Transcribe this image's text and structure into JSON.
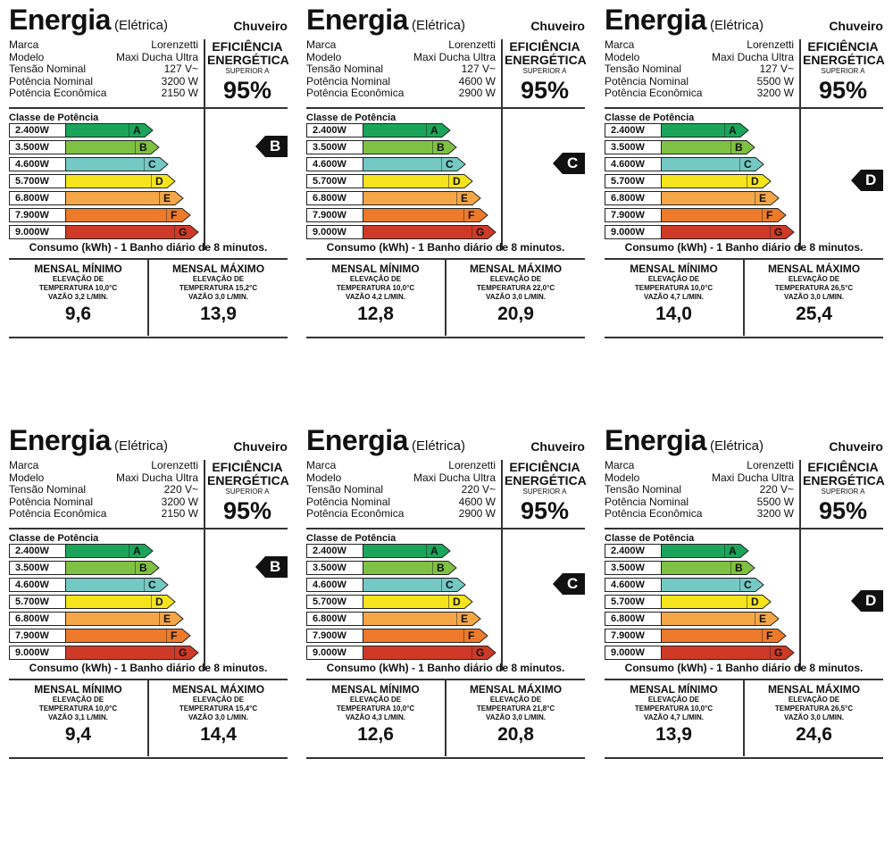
{
  "common": {
    "title": "Energia",
    "subtitle": "(Elétrica)",
    "type": "Chuveiro",
    "spec_labels": [
      "Marca",
      "Modelo",
      "Tensão Nominal",
      "Potência Nominal",
      "Potência Econômica"
    ],
    "efficiency": {
      "l1": "EFICIÊNCIA",
      "l2": "ENERGÉTICA",
      "l3": "SUPERIOR A",
      "l4": "95%"
    },
    "classe_title": "Classe de Potência",
    "classes": [
      {
        "power": "2.400W",
        "letter": "A",
        "color": "#1aa55a"
      },
      {
        "power": "3.500W",
        "letter": "B",
        "color": "#7fc142"
      },
      {
        "power": "4.600W",
        "letter": "C",
        "color": "#74c9c4"
      },
      {
        "power": "5.700W",
        "letter": "D",
        "color": "#f5e41c"
      },
      {
        "power": "6.800W",
        "letter": "E",
        "color": "#f5a748"
      },
      {
        "power": "7.900W",
        "letter": "F",
        "color": "#ed7a2a"
      },
      {
        "power": "9.000W",
        "letter": "G",
        "color": "#cf3a28"
      }
    ],
    "consumption_title": "Consumo (kWh) - 1 Banho diário de 8 minutos.",
    "min_title": "MENSAL MÍNIMO",
    "max_title": "MENSAL MÁXIMO",
    "elev_label": "ELEVAÇÃO DE"
  },
  "labels": [
    {
      "brand": "Lorenzetti",
      "model": "Maxi Ducha Ultra",
      "voltage": "127 V~",
      "power": "3200 W",
      "eco": "2150 W",
      "class": "B",
      "min": {
        "temp": "TEMPERATURA 10,0°C",
        "flow": "VAZÃO 3,2 L/MIN.",
        "value": "9,6"
      },
      "max": {
        "temp": "TEMPERATURA 15,2°C",
        "flow": "VAZÃO 3,0 L/MIN.",
        "value": "13,9"
      }
    },
    {
      "brand": "Lorenzetti",
      "model": "Maxi Ducha Ultra",
      "voltage": "127 V~",
      "power": "4600 W",
      "eco": "2900 W",
      "class": "C",
      "min": {
        "temp": "TEMPERATURA 10,0°C",
        "flow": "VAZÃO 4,2 L/MIN.",
        "value": "12,8"
      },
      "max": {
        "temp": "TEMPERATURA 22,0°C",
        "flow": "VAZÃO 3,0 L/MIN.",
        "value": "20,9"
      }
    },
    {
      "brand": "Lorenzetti",
      "model": "Maxi Ducha Ultra",
      "voltage": "127 V~",
      "power": "5500 W",
      "eco": "3200 W",
      "class": "D",
      "min": {
        "temp": "TEMPERATURA 10,0°C",
        "flow": "VAZÃO 4,7 L/MIN.",
        "value": "14,0"
      },
      "max": {
        "temp": "TEMPERATURA 26,5°C",
        "flow": "VAZÃO 3,0 L/MIN.",
        "value": "25,4"
      }
    },
    {
      "brand": "Lorenzetti",
      "model": "Maxi Ducha Ultra",
      "voltage": "220 V~",
      "power": "3200 W",
      "eco": "2150 W",
      "class": "B",
      "min": {
        "temp": "TEMPERATURA 10,0°C",
        "flow": "VAZÃO 3,1 L/MIN.",
        "value": "9,4"
      },
      "max": {
        "temp": "TEMPERATURA 15,4°C",
        "flow": "VAZÃO 3,0 L/MIN.",
        "value": "14,4"
      }
    },
    {
      "brand": "Lorenzetti",
      "model": "Maxi Ducha Ultra",
      "voltage": "220 V~",
      "power": "4600 W",
      "eco": "2900 W",
      "class": "C",
      "min": {
        "temp": "TEMPERATURA 10,0°C",
        "flow": "VAZÃO 4,3 L/MIN.",
        "value": "12,6"
      },
      "max": {
        "temp": "TEMPERATURA 21,8°C",
        "flow": "VAZÃO 3,0 L/MIN.",
        "value": "20,8"
      }
    },
    {
      "brand": "Lorenzetti",
      "model": "Maxi Ducha Ultra",
      "voltage": "220 V~",
      "power": "5500 W",
      "eco": "3200 W",
      "class": "D",
      "min": {
        "temp": "TEMPERATURA 10,0°C",
        "flow": "VAZÃO 4,7 L/MIN.",
        "value": "13,9"
      },
      "max": {
        "temp": "TEMPERATURA 26,5°C",
        "flow": "VAZÃO 3,0 L/MIN.",
        "value": "24,6"
      }
    }
  ]
}
